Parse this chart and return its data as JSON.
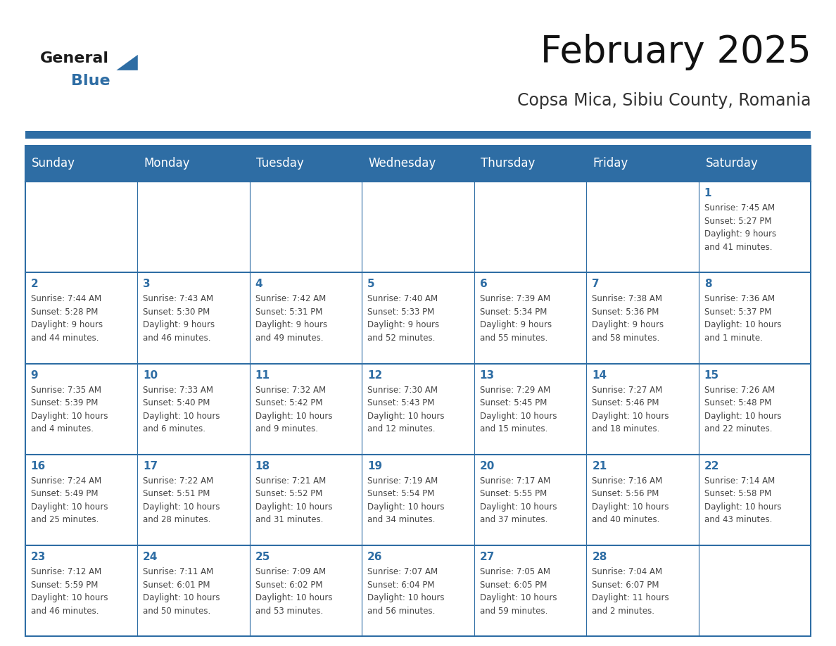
{
  "title": "February 2025",
  "subtitle": "Copsa Mica, Sibiu County, Romania",
  "header_bg": "#2E6DA4",
  "header_text_color": "#FFFFFF",
  "cell_bg": "#FFFFFF",
  "day_number_color": "#2E6DA4",
  "info_text_color": "#444444",
  "border_color": "#2E6DA4",
  "days_of_week": [
    "Sunday",
    "Monday",
    "Tuesday",
    "Wednesday",
    "Thursday",
    "Friday",
    "Saturday"
  ],
  "weeks": [
    [
      {
        "day": "",
        "info": ""
      },
      {
        "day": "",
        "info": ""
      },
      {
        "day": "",
        "info": ""
      },
      {
        "day": "",
        "info": ""
      },
      {
        "day": "",
        "info": ""
      },
      {
        "day": "",
        "info": ""
      },
      {
        "day": "1",
        "info": "Sunrise: 7:45 AM\nSunset: 5:27 PM\nDaylight: 9 hours\nand 41 minutes."
      }
    ],
    [
      {
        "day": "2",
        "info": "Sunrise: 7:44 AM\nSunset: 5:28 PM\nDaylight: 9 hours\nand 44 minutes."
      },
      {
        "day": "3",
        "info": "Sunrise: 7:43 AM\nSunset: 5:30 PM\nDaylight: 9 hours\nand 46 minutes."
      },
      {
        "day": "4",
        "info": "Sunrise: 7:42 AM\nSunset: 5:31 PM\nDaylight: 9 hours\nand 49 minutes."
      },
      {
        "day": "5",
        "info": "Sunrise: 7:40 AM\nSunset: 5:33 PM\nDaylight: 9 hours\nand 52 minutes."
      },
      {
        "day": "6",
        "info": "Sunrise: 7:39 AM\nSunset: 5:34 PM\nDaylight: 9 hours\nand 55 minutes."
      },
      {
        "day": "7",
        "info": "Sunrise: 7:38 AM\nSunset: 5:36 PM\nDaylight: 9 hours\nand 58 minutes."
      },
      {
        "day": "8",
        "info": "Sunrise: 7:36 AM\nSunset: 5:37 PM\nDaylight: 10 hours\nand 1 minute."
      }
    ],
    [
      {
        "day": "9",
        "info": "Sunrise: 7:35 AM\nSunset: 5:39 PM\nDaylight: 10 hours\nand 4 minutes."
      },
      {
        "day": "10",
        "info": "Sunrise: 7:33 AM\nSunset: 5:40 PM\nDaylight: 10 hours\nand 6 minutes."
      },
      {
        "day": "11",
        "info": "Sunrise: 7:32 AM\nSunset: 5:42 PM\nDaylight: 10 hours\nand 9 minutes."
      },
      {
        "day": "12",
        "info": "Sunrise: 7:30 AM\nSunset: 5:43 PM\nDaylight: 10 hours\nand 12 minutes."
      },
      {
        "day": "13",
        "info": "Sunrise: 7:29 AM\nSunset: 5:45 PM\nDaylight: 10 hours\nand 15 minutes."
      },
      {
        "day": "14",
        "info": "Sunrise: 7:27 AM\nSunset: 5:46 PM\nDaylight: 10 hours\nand 18 minutes."
      },
      {
        "day": "15",
        "info": "Sunrise: 7:26 AM\nSunset: 5:48 PM\nDaylight: 10 hours\nand 22 minutes."
      }
    ],
    [
      {
        "day": "16",
        "info": "Sunrise: 7:24 AM\nSunset: 5:49 PM\nDaylight: 10 hours\nand 25 minutes."
      },
      {
        "day": "17",
        "info": "Sunrise: 7:22 AM\nSunset: 5:51 PM\nDaylight: 10 hours\nand 28 minutes."
      },
      {
        "day": "18",
        "info": "Sunrise: 7:21 AM\nSunset: 5:52 PM\nDaylight: 10 hours\nand 31 minutes."
      },
      {
        "day": "19",
        "info": "Sunrise: 7:19 AM\nSunset: 5:54 PM\nDaylight: 10 hours\nand 34 minutes."
      },
      {
        "day": "20",
        "info": "Sunrise: 7:17 AM\nSunset: 5:55 PM\nDaylight: 10 hours\nand 37 minutes."
      },
      {
        "day": "21",
        "info": "Sunrise: 7:16 AM\nSunset: 5:56 PM\nDaylight: 10 hours\nand 40 minutes."
      },
      {
        "day": "22",
        "info": "Sunrise: 7:14 AM\nSunset: 5:58 PM\nDaylight: 10 hours\nand 43 minutes."
      }
    ],
    [
      {
        "day": "23",
        "info": "Sunrise: 7:12 AM\nSunset: 5:59 PM\nDaylight: 10 hours\nand 46 minutes."
      },
      {
        "day": "24",
        "info": "Sunrise: 7:11 AM\nSunset: 6:01 PM\nDaylight: 10 hours\nand 50 minutes."
      },
      {
        "day": "25",
        "info": "Sunrise: 7:09 AM\nSunset: 6:02 PM\nDaylight: 10 hours\nand 53 minutes."
      },
      {
        "day": "26",
        "info": "Sunrise: 7:07 AM\nSunset: 6:04 PM\nDaylight: 10 hours\nand 56 minutes."
      },
      {
        "day": "27",
        "info": "Sunrise: 7:05 AM\nSunset: 6:05 PM\nDaylight: 10 hours\nand 59 minutes."
      },
      {
        "day": "28",
        "info": "Sunrise: 7:04 AM\nSunset: 6:07 PM\nDaylight: 11 hours\nand 2 minutes."
      },
      {
        "day": "",
        "info": ""
      }
    ]
  ],
  "logo_general_color": "#1a1a1a",
  "logo_blue_color": "#2E6DA4",
  "title_fontsize": 38,
  "subtitle_fontsize": 17,
  "header_fontsize": 12,
  "day_num_fontsize": 11,
  "info_fontsize": 8.5
}
